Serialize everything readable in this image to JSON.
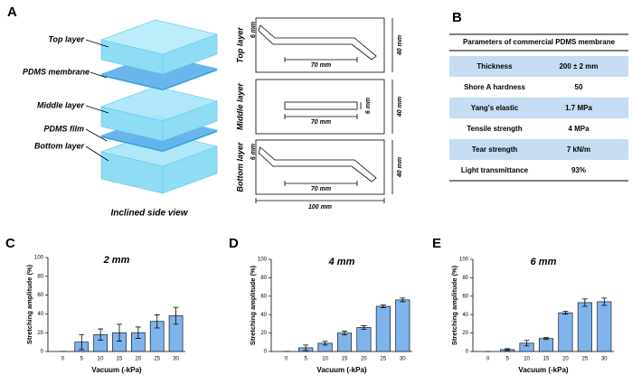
{
  "panel_a": {
    "label": "A",
    "layers": [
      "Top layer",
      "PDMS membrane",
      "Middle layer",
      "PDMS film",
      "Bottom layer"
    ],
    "caption": "Inclined side view",
    "schematics": [
      {
        "name": "Top layer",
        "width_label": "6 mm",
        "length_label": "70 mm",
        "height_label": "40 mm"
      },
      {
        "name": "Middle layer",
        "width_label": "6 mm",
        "length_label": "70 mm",
        "height_label": "40 mm"
      },
      {
        "name": "Bottom layer",
        "width_label": "6 mm",
        "length_label": "70 mm",
        "height_label": "40 mm"
      }
    ],
    "total_width_label": "100 mm"
  },
  "panel_b": {
    "label": "B",
    "title": "Parameters of commercial PDMS membrane",
    "rows": [
      [
        "Thickness",
        "200 ± 2 mm"
      ],
      [
        "Shore A hardness",
        "50"
      ],
      [
        "Yang's elastic",
        "1.7 MPa"
      ],
      [
        "Tensile strength",
        "4 MPa"
      ],
      [
        "Tear strength",
        "7 kN/m"
      ],
      [
        "Light transmittance",
        "93%"
      ]
    ]
  },
  "chart_data": [
    {
      "type": "bar",
      "panel": "C",
      "title": "2 mm",
      "x_label": "Vacuum (-kPa)",
      "y_label": "Stretching amplitude (%)",
      "categories": [
        "0",
        "5",
        "10",
        "15",
        "20",
        "25",
        "30"
      ],
      "values": [
        0,
        10,
        18,
        20,
        20,
        32,
        38
      ],
      "errors": [
        0,
        8,
        6,
        9,
        6,
        7,
        9
      ],
      "color": "#7fb3ec",
      "ylim": [
        0,
        100
      ],
      "yticks": [
        0,
        20,
        40,
        60,
        80,
        100
      ]
    },
    {
      "type": "bar",
      "panel": "D",
      "title": "4 mm",
      "x_label": "Vacuum (-kPa)",
      "y_label": "Stretching amplitude (%)",
      "categories": [
        "0",
        "5",
        "10",
        "15",
        "20",
        "25",
        "30"
      ],
      "values": [
        0,
        4,
        9,
        20,
        26,
        49,
        56
      ],
      "errors": [
        0,
        3,
        2,
        2,
        2,
        1.5,
        2
      ],
      "color": "#7fb3ec",
      "ylim": [
        0,
        100
      ],
      "yticks": [
        0,
        20,
        40,
        60,
        80,
        100
      ]
    },
    {
      "type": "bar",
      "panel": "E",
      "title": "6 mm",
      "x_label": "Vacuum (-kPa)",
      "y_label": "Stretching amplitude (%)",
      "categories": [
        "0",
        "5",
        "10",
        "15",
        "20",
        "25",
        "30"
      ],
      "values": [
        0,
        2,
        9,
        14,
        42,
        53,
        54
      ],
      "errors": [
        0,
        1,
        3,
        1,
        1.5,
        4,
        4
      ],
      "color": "#7fb3ec",
      "ylim": [
        0,
        100
      ],
      "yticks": [
        0,
        20,
        40,
        60,
        80,
        100
      ]
    }
  ]
}
